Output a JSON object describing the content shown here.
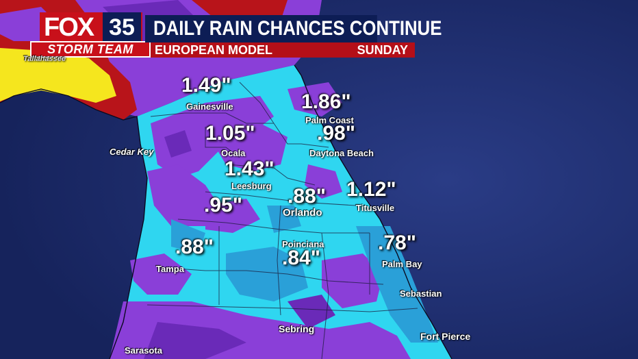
{
  "brand": {
    "logo_text": "FOX",
    "channel": "35",
    "team": "STORM TEAM"
  },
  "header": {
    "title": "DAILY RAIN CHANCES CONTINUE",
    "model": "EUROPEAN MODEL",
    "day": "SUNDAY"
  },
  "colors": {
    "ocean": "#1d2b6b",
    "brand_red": "#c8101a",
    "navy": "#0d1d55",
    "rain_light": "#2fd6f0",
    "rain_mid": "#2aa0d8",
    "rain_purple": "#8a3fd8",
    "rain_violet": "#6a2ab8",
    "rain_red": "#b8141a",
    "rain_yellow": "#f5e61e"
  },
  "rainfall": [
    {
      "id": "gainesville",
      "value": "1.49\"",
      "city": "Gainesville"
    },
    {
      "id": "palm-coast",
      "value": "1.86\"",
      "city": "Palm Coast"
    },
    {
      "id": "daytona",
      "value": ".98\"",
      "city": "Daytona Beach"
    },
    {
      "id": "ocala",
      "value": "1.05\"",
      "city": "Ocala"
    },
    {
      "id": "leesburg",
      "value": "1.43\"",
      "city": "Leesburg"
    },
    {
      "id": "titusville",
      "value": "1.12\"",
      "city": "Titusville"
    },
    {
      "id": "orlando",
      "value": ".88\"",
      "city": "Orlando"
    },
    {
      "id": "west-central",
      "value": ".95\"",
      "city": ""
    },
    {
      "id": "tampa",
      "value": ".88\"",
      "city": "Tampa"
    },
    {
      "id": "poinciana",
      "value": ".84\"",
      "city": "Poinciana"
    },
    {
      "id": "palm-bay",
      "value": ".78\"",
      "city": "Palm Bay"
    }
  ],
  "other_cities": {
    "tallahassee": "Tallahassee",
    "cedar_key": "Cedar Key",
    "sebastian": "Sebastian",
    "sebring": "Sebring",
    "fort_pierce": "Fort Pierce",
    "sarasota": "Sarasota"
  }
}
